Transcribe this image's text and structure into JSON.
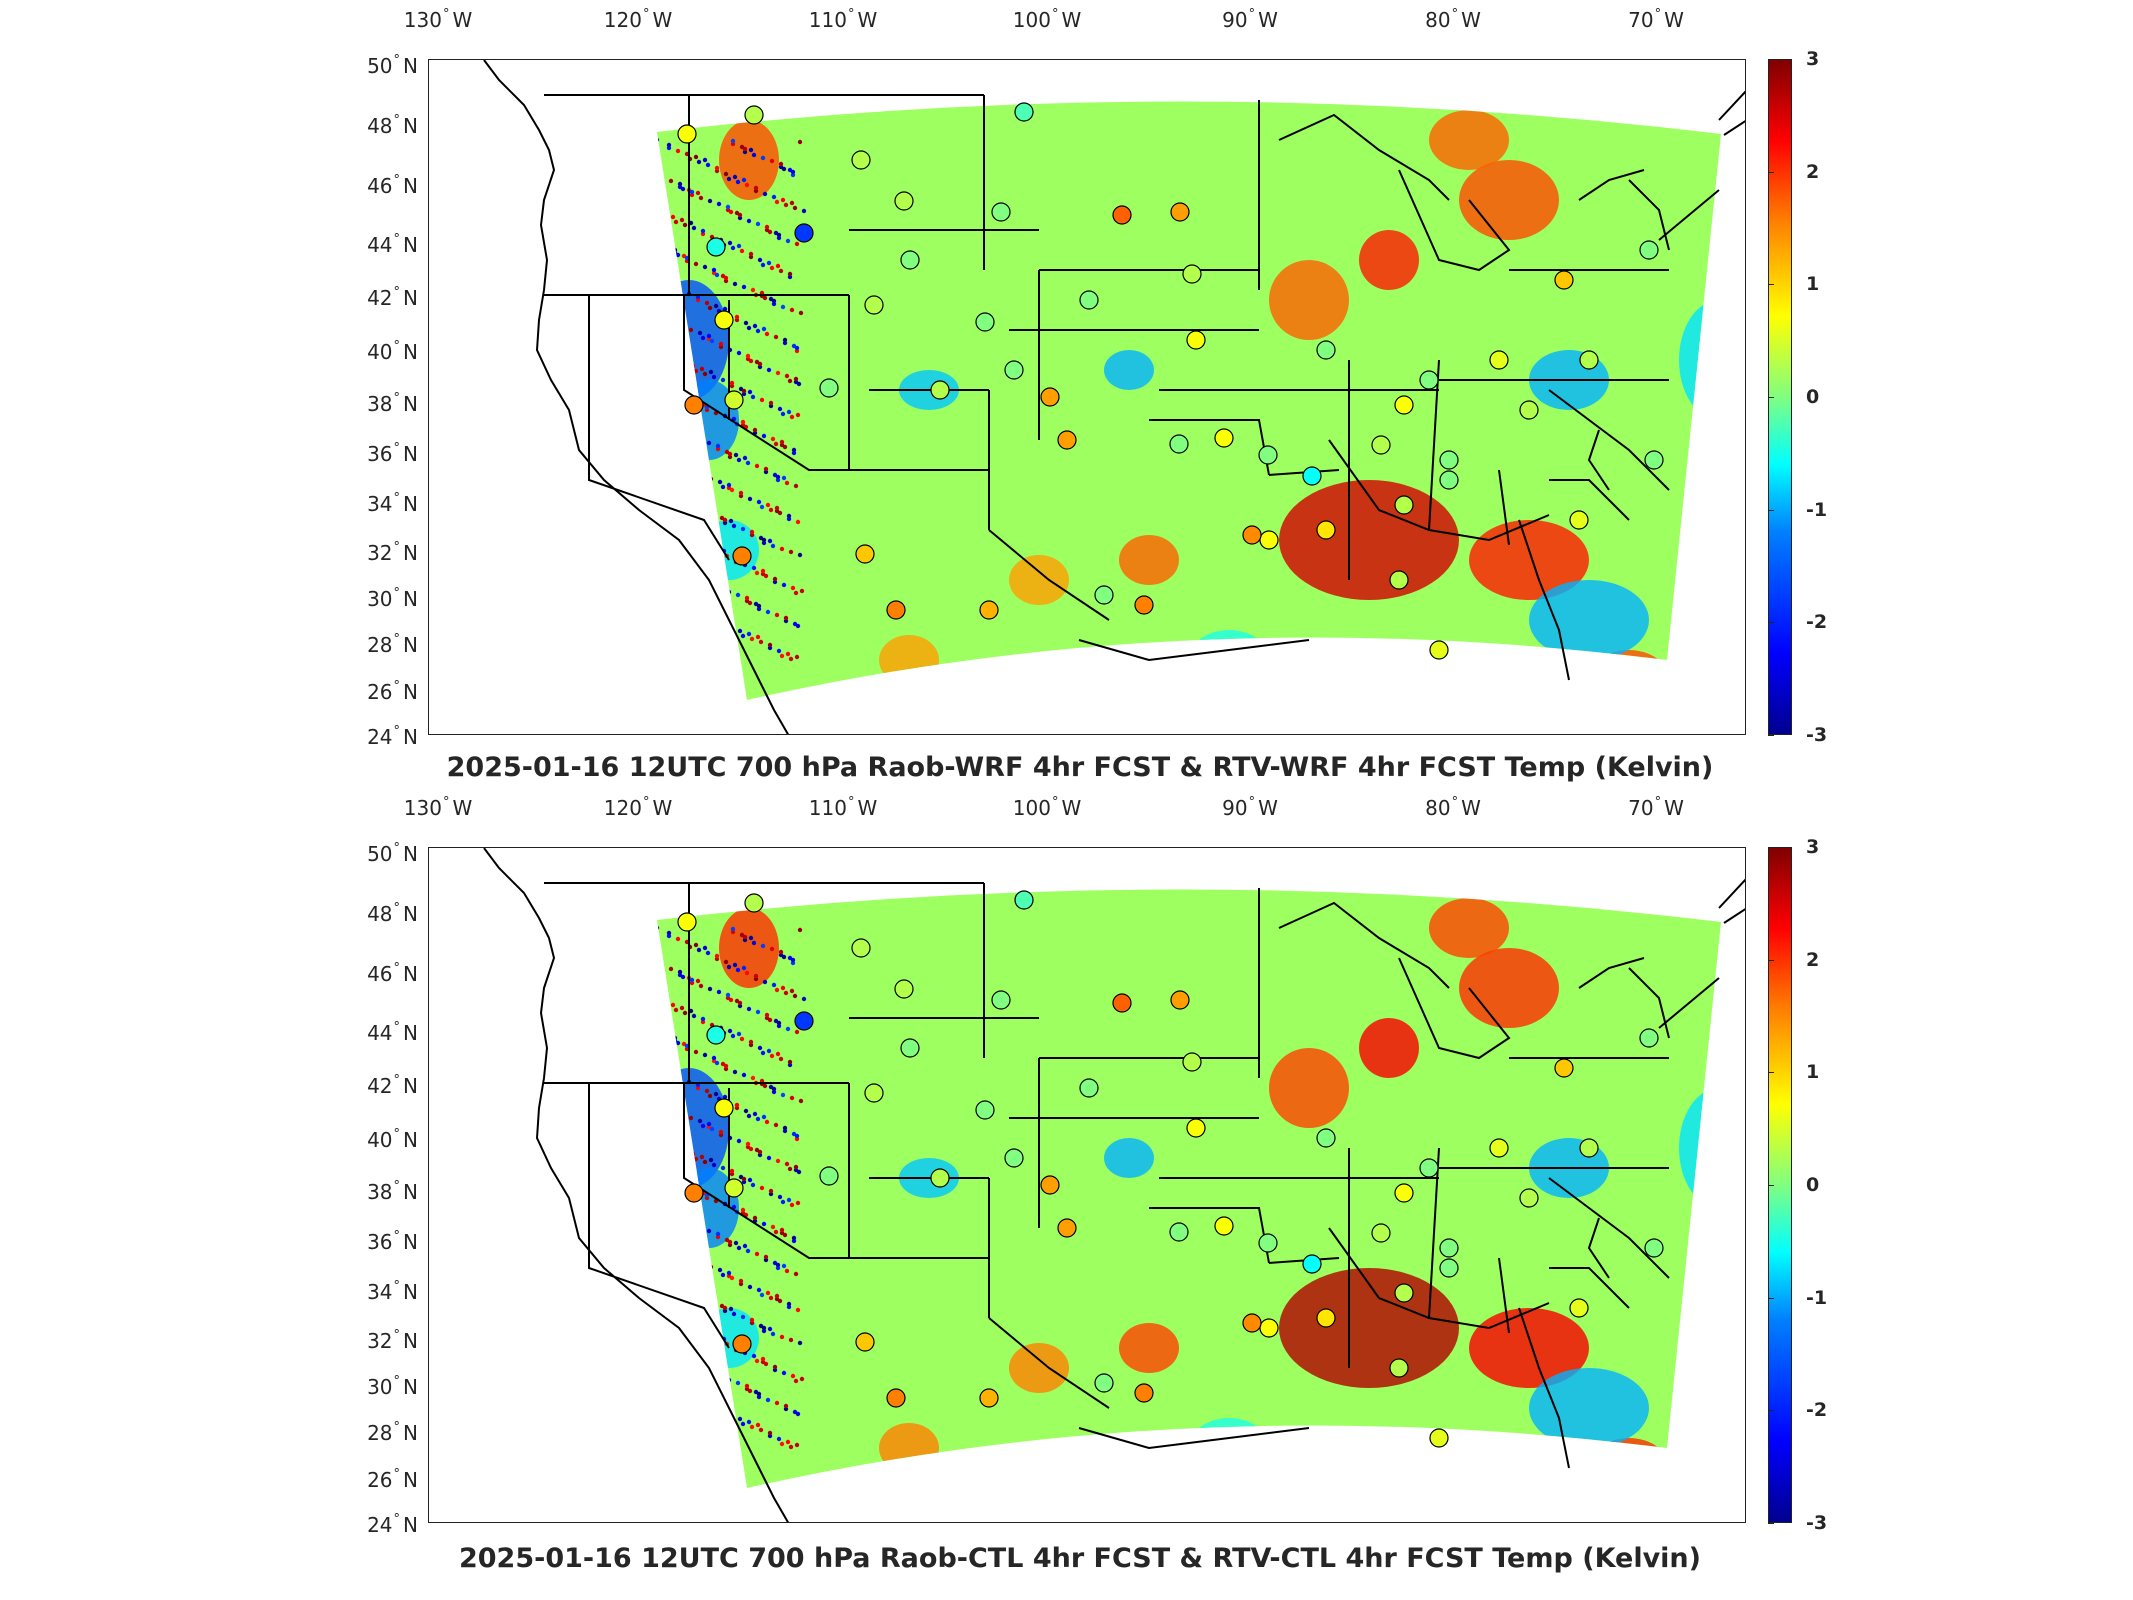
{
  "panels": [
    {
      "id": "top",
      "title": "2025-01-16 12UTC 700 hPa Raob-WRF 4hr FCST & RTV-WRF 4hr FCST Temp (Kelvin)"
    },
    {
      "id": "bottom",
      "title": "2025-01-16 12UTC 700 hPa Raob-CTL 4hr FCST & RTV-CTL 4hr FCST Temp (Kelvin)"
    }
  ],
  "longitude_labels": [
    {
      "value": "130",
      "hemi": "W"
    },
    {
      "value": "120",
      "hemi": "W"
    },
    {
      "value": "110",
      "hemi": "W"
    },
    {
      "value": "100",
      "hemi": "W"
    },
    {
      "value": "90",
      "hemi": "W"
    },
    {
      "value": "80",
      "hemi": "W"
    },
    {
      "value": "70",
      "hemi": "W"
    }
  ],
  "latitude_labels": [
    {
      "value": "50",
      "hemi": "N"
    },
    {
      "value": "48",
      "hemi": "N"
    },
    {
      "value": "46",
      "hemi": "N"
    },
    {
      "value": "44",
      "hemi": "N"
    },
    {
      "value": "42",
      "hemi": "N"
    },
    {
      "value": "40",
      "hemi": "N"
    },
    {
      "value": "38",
      "hemi": "N"
    },
    {
      "value": "36",
      "hemi": "N"
    },
    {
      "value": "34",
      "hemi": "N"
    },
    {
      "value": "32",
      "hemi": "N"
    },
    {
      "value": "30",
      "hemi": "N"
    },
    {
      "value": "28",
      "hemi": "N"
    },
    {
      "value": "26",
      "hemi": "N"
    },
    {
      "value": "24",
      "hemi": "N"
    }
  ],
  "colorbar": {
    "ticks": [
      "3",
      "2",
      "1",
      "0",
      "-1",
      "-2",
      "-3"
    ],
    "min": -3,
    "max": 3,
    "colormap": "jet"
  },
  "colors": {
    "background": "#ffffff",
    "border": "#000000",
    "text": "#262626"
  }
}
